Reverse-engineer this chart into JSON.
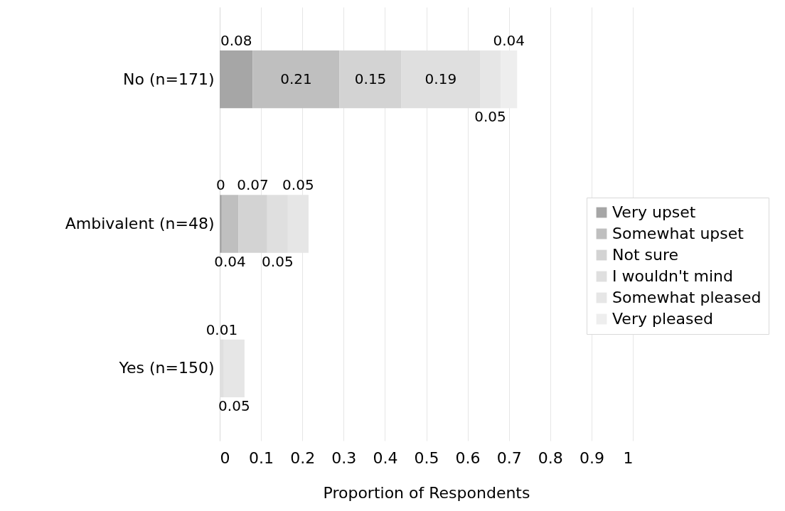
{
  "chart_data": {
    "type": "bar",
    "orientation": "horizontal",
    "stacked": true,
    "categories": [
      "No (n=171)",
      "Ambivalent (n=48)",
      "Yes (n=150)"
    ],
    "xlabel": "Proportion of Respondents",
    "xlim": [
      0,
      1
    ],
    "xticks": [
      0,
      0.1,
      0.2,
      0.3,
      0.4,
      0.5,
      0.6,
      0.7,
      0.8,
      0.9,
      1
    ],
    "grid": "x",
    "legend": "right",
    "series": [
      {
        "name": "Very upset",
        "color": "#a6a6a6",
        "values": [
          0.08,
          0.005,
          null
        ],
        "value_labels": [
          "0.08",
          "0",
          null
        ]
      },
      {
        "name": "Somewhat upset",
        "color": "#bfbfbf",
        "values": [
          0.21,
          0.04,
          null
        ],
        "value_labels": [
          "0.21",
          "0.04",
          null
        ]
      },
      {
        "name": "Not sure",
        "color": "#d3d3d3",
        "values": [
          0.15,
          0.07,
          null
        ],
        "value_labels": [
          "0.15",
          "0.07",
          null
        ]
      },
      {
        "name": "I wouldn't mind",
        "color": "#dfdfdf",
        "values": [
          0.19,
          0.05,
          0.01
        ],
        "value_labels": [
          "0.19",
          "0.05",
          "0.01"
        ]
      },
      {
        "name": "Somewhat pleased",
        "color": "#e6e6e6",
        "values": [
          0.05,
          0.05,
          0.05
        ],
        "value_labels": [
          "0.05",
          "0.05",
          "0.05"
        ]
      },
      {
        "name": "Very pleased",
        "color": "#eeeeee",
        "values": [
          0.04,
          null,
          null
        ],
        "value_labels": [
          "0.04",
          null,
          null
        ]
      }
    ]
  }
}
